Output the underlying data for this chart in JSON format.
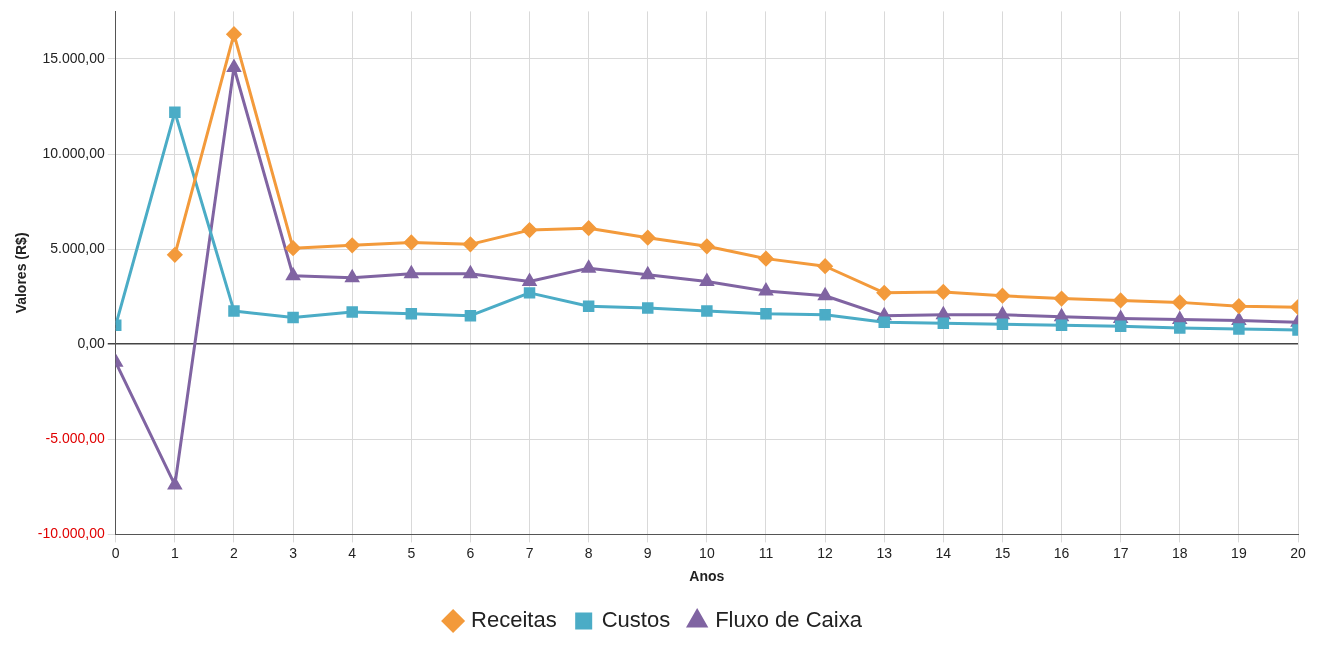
{
  "chart_data": {
    "type": "line",
    "xlabel": "Anos",
    "ylabel": "Valores (R$)",
    "x": [
      0,
      1,
      2,
      3,
      4,
      5,
      6,
      7,
      8,
      9,
      10,
      11,
      12,
      13,
      14,
      15,
      16,
      17,
      18,
      19,
      20
    ],
    "xlim": [
      0,
      20
    ],
    "xticks": [
      0,
      1,
      2,
      3,
      4,
      5,
      6,
      7,
      8,
      9,
      10,
      11,
      12,
      13,
      14,
      15,
      16,
      17,
      18,
      19,
      20
    ],
    "ylim": [
      -10000,
      17500
    ],
    "yticks": [
      {
        "value": -10000,
        "label": "-10.000,00"
      },
      {
        "value": -5000,
        "label": "-5.000,00"
      },
      {
        "value": 0,
        "label": "0,00"
      },
      {
        "value": 5000,
        "label": "5.000,00"
      },
      {
        "value": 10000,
        "label": "10.000,00"
      },
      {
        "value": 15000,
        "label": "15.000,00"
      }
    ],
    "grid": true,
    "legend": "bottom",
    "line_style": "solid",
    "series": [
      {
        "name": "Receitas",
        "color": "#f39a3b",
        "marker": "diamond",
        "values": [
          null,
          4700,
          16300,
          5050,
          5200,
          5350,
          5250,
          6000,
          6100,
          5600,
          5150,
          4500,
          4100,
          2700,
          2750,
          2550,
          2400,
          2300,
          2200,
          2000,
          1950
        ]
      },
      {
        "name": "Custos",
        "color": "#4bacc6",
        "marker": "square",
        "values": [
          1000,
          12200,
          1750,
          1400,
          1700,
          1600,
          1500,
          2700,
          2000,
          1900,
          1750,
          1600,
          1550,
          1150,
          1100,
          1050,
          1000,
          950,
          850,
          800,
          750
        ]
      },
      {
        "name": "Fluxo de Caixa",
        "color": "#8064a2",
        "marker": "triangle",
        "values": [
          -950,
          -7400,
          14550,
          3600,
          3500,
          3700,
          3700,
          3300,
          4000,
          3650,
          3300,
          2800,
          2550,
          1500,
          1550,
          1550,
          1450,
          1350,
          1300,
          1250,
          1150
        ]
      }
    ]
  }
}
